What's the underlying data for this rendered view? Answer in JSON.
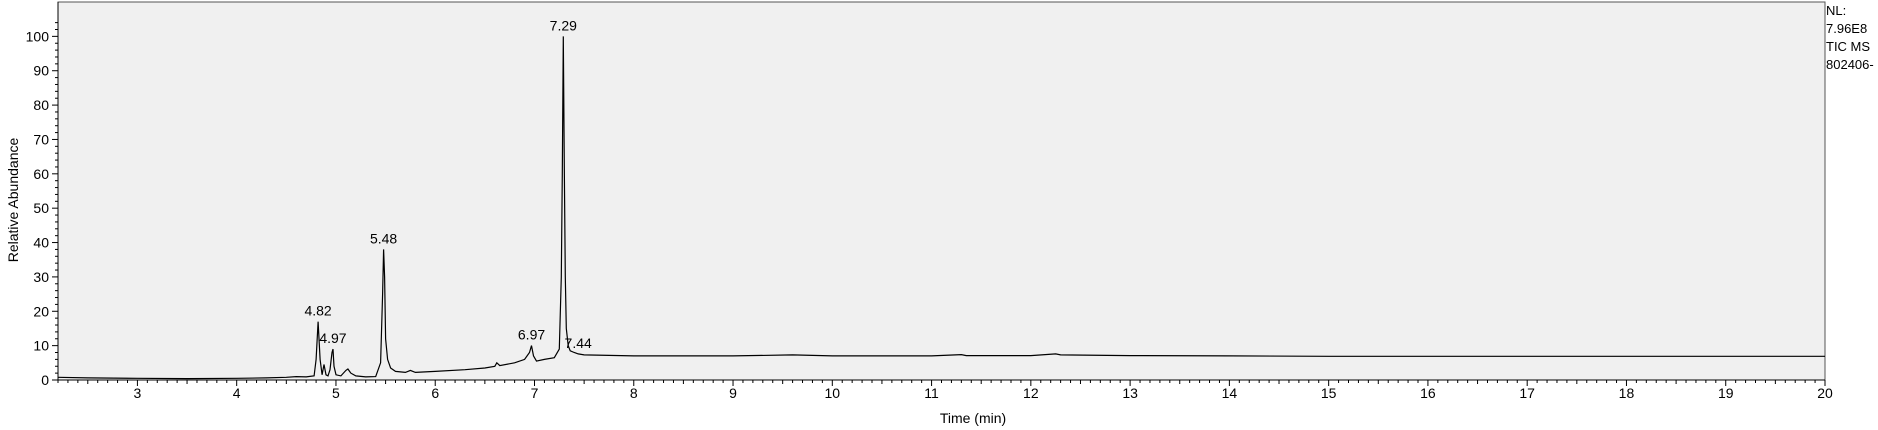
{
  "header": {
    "nl_label": "NL:",
    "nl_value": "7.96E8",
    "trace_label": "TIC MS",
    "file_label": "802406-"
  },
  "chart_data": {
    "type": "line",
    "title": "",
    "xlabel": "Time (min)",
    "ylabel": "Relative Abundance",
    "xlim": [
      2.2,
      20
    ],
    "ylim": [
      0,
      110
    ],
    "xticks": [
      3,
      4,
      5,
      6,
      7,
      8,
      9,
      10,
      11,
      12,
      13,
      14,
      15,
      16,
      17,
      18,
      19,
      20
    ],
    "yticks": [
      0,
      10,
      20,
      30,
      40,
      50,
      60,
      70,
      80,
      90,
      100
    ],
    "grid": false,
    "background": "#f0f0f0",
    "line_color": "#000000",
    "peak_labels": [
      {
        "x": 4.82,
        "y": 17,
        "label": "4.82"
      },
      {
        "x": 4.97,
        "y": 9,
        "label": "4.97"
      },
      {
        "x": 5.48,
        "y": 38,
        "label": "5.48"
      },
      {
        "x": 6.97,
        "y": 10,
        "label": "6.97"
      },
      {
        "x": 7.29,
        "y": 100,
        "label": "7.29"
      },
      {
        "x": 7.44,
        "y": 7.6,
        "label": "7.44"
      }
    ],
    "series": [
      {
        "x": [
          2.2,
          2.5,
          3.0,
          3.5,
          4.0,
          4.3,
          4.5,
          4.6,
          4.7,
          4.78,
          4.8,
          4.82,
          4.84,
          4.86,
          4.88,
          4.9,
          4.92,
          4.94,
          4.96,
          4.97,
          4.98,
          5.0,
          5.05,
          5.1,
          5.12,
          5.15,
          5.2,
          5.3,
          5.4,
          5.45,
          5.47,
          5.48,
          5.49,
          5.5,
          5.52,
          5.55,
          5.6,
          5.7,
          5.75,
          5.8,
          6.0,
          6.3,
          6.5,
          6.6,
          6.62,
          6.65,
          6.8,
          6.9,
          6.95,
          6.97,
          6.99,
          7.02,
          7.1,
          7.2,
          7.25,
          7.27,
          7.28,
          7.29,
          7.3,
          7.31,
          7.32,
          7.34,
          7.36,
          7.4,
          7.44,
          7.5,
          8.0,
          9.0,
          9.6,
          10.0,
          11.0,
          11.3,
          11.35,
          12.0,
          12.25,
          12.3,
          13.0,
          14.0,
          15.0,
          16.0,
          17.0,
          18.0,
          19.0,
          20.0
        ],
        "y": [
          0.8,
          0.6,
          0.5,
          0.4,
          0.5,
          0.6,
          0.8,
          1.0,
          0.9,
          1.2,
          6.0,
          17.0,
          6.0,
          1.5,
          4.5,
          1.5,
          1.2,
          3.0,
          8.0,
          9.0,
          4.0,
          1.5,
          1.2,
          2.8,
          3.2,
          2.0,
          1.2,
          0.9,
          1.0,
          5.0,
          25.0,
          38.0,
          30.0,
          12.0,
          6.0,
          3.5,
          2.5,
          2.2,
          2.8,
          2.2,
          2.5,
          3.0,
          3.5,
          4.0,
          5.0,
          4.2,
          5.0,
          6.0,
          8.0,
          10.0,
          7.0,
          5.5,
          6.0,
          6.5,
          9.0,
          30.0,
          60.0,
          100.0,
          62.0,
          30.0,
          15.0,
          10.0,
          8.5,
          8.0,
          7.6,
          7.3,
          7.0,
          7.0,
          7.3,
          7.0,
          7.0,
          7.4,
          7.1,
          7.1,
          7.6,
          7.3,
          7.1,
          7.0,
          6.9,
          6.9,
          6.9,
          6.9,
          6.9,
          6.9
        ]
      }
    ]
  }
}
